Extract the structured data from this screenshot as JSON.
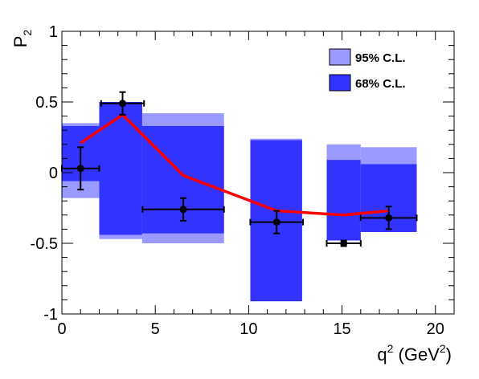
{
  "chart_data": {
    "type": "scatter",
    "xlabel": {
      "base": "q",
      "sup": "2",
      "unit_open": " (GeV",
      "unit_sup": "2",
      "unit_close": ")"
    },
    "ylabel": {
      "base": "P",
      "sub": "2"
    },
    "xlim": [
      0,
      21
    ],
    "ylim": [
      -1,
      1
    ],
    "x_ticks": [
      0,
      5,
      10,
      15,
      20
    ],
    "y_ticks": [
      -1,
      -0.5,
      0,
      0.5,
      1
    ],
    "x_tick_labels": [
      "0",
      "5",
      "10",
      "15",
      "20"
    ],
    "y_tick_labels": [
      "-1",
      "-0.5",
      "0",
      "0.5",
      "1"
    ],
    "grid": false,
    "legend_position": "top-right",
    "legend": [
      {
        "label": "95% C.L.",
        "color": "#9999ff"
      },
      {
        "label": "68% C.L.",
        "color": "#3333ff"
      }
    ],
    "bands": [
      {
        "x": [
          0.0,
          2.0
        ],
        "cl95": [
          -0.18,
          0.35
        ],
        "cl68": [
          -0.06,
          0.33
        ]
      },
      {
        "x": [
          2.0,
          4.3
        ],
        "cl95": [
          -0.47,
          0.5
        ],
        "cl68": [
          -0.44,
          0.5
        ]
      },
      {
        "x": [
          4.3,
          8.68
        ],
        "cl95": [
          -0.5,
          0.42
        ],
        "cl68": [
          -0.43,
          0.33
        ]
      },
      {
        "x": [
          10.09,
          12.86
        ],
        "cl95": [
          -0.91,
          0.24
        ],
        "cl68": [
          -0.91,
          0.23
        ]
      },
      {
        "x": [
          14.18,
          16.0
        ],
        "cl95": [
          -0.48,
          0.2
        ],
        "cl68": [
          -0.48,
          0.09
        ]
      },
      {
        "x": [
          16.0,
          19.0
        ],
        "cl95": [
          -0.42,
          0.18
        ],
        "cl68": [
          -0.42,
          0.06
        ]
      }
    ],
    "series": [
      {
        "color": "#ff0000",
        "kind": "line",
        "x": [
          1.0,
          3.25,
          6.5,
          11.5,
          15.09,
          17.5
        ],
        "y": [
          0.21,
          0.41,
          -0.02,
          -0.27,
          -0.3,
          -0.27
        ]
      },
      {
        "color": "#000000",
        "kind": "points",
        "x": [
          1.0,
          3.25,
          6.5,
          11.5,
          15.09,
          17.5
        ],
        "y": [
          0.03,
          0.49,
          -0.26,
          -0.35,
          -0.5,
          -0.32
        ],
        "xerr": [
          1.0,
          1.15,
          2.18,
          1.41,
          0.91,
          1.5
        ],
        "yerr": [
          0.15,
          0.08,
          0.08,
          0.08,
          0.02,
          0.08
        ]
      }
    ]
  }
}
